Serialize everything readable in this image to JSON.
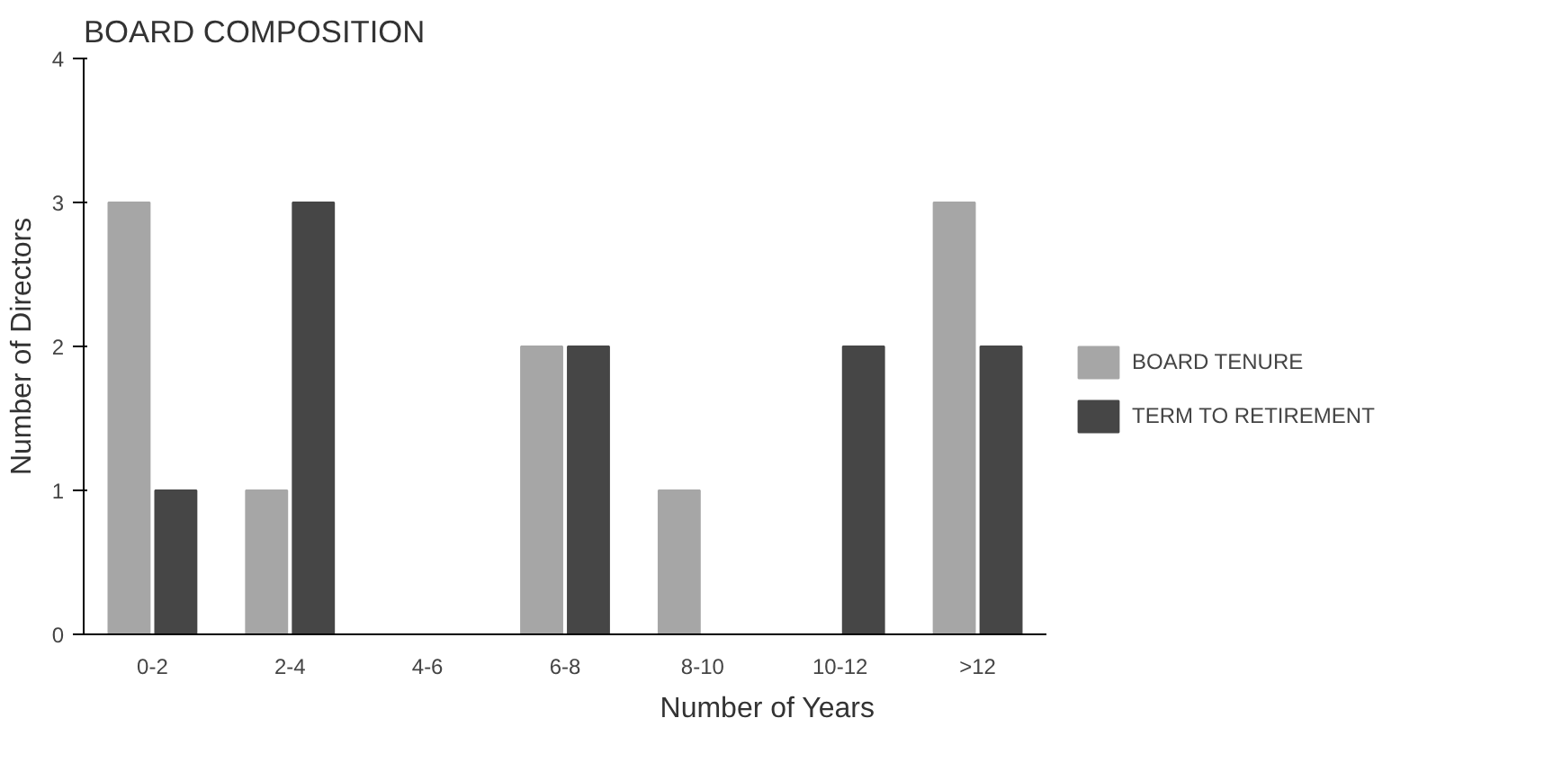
{
  "chart_data": {
    "type": "bar",
    "title": "BOARD COMPOSITION",
    "xlabel": "Number of Years",
    "ylabel": "Number of Directors",
    "categories": [
      "0-2",
      "2-4",
      "4-6",
      "6-8",
      "8-10",
      "10-12",
      ">12"
    ],
    "series": [
      {
        "name": "BOARD TENURE",
        "color": "#a6a6a6",
        "values": [
          3,
          1,
          0,
          2,
          1,
          0,
          3
        ]
      },
      {
        "name": "TERM TO RETIREMENT",
        "color": "#464646",
        "values": [
          1,
          3,
          0,
          2,
          0,
          2,
          2
        ]
      }
    ],
    "ylim": [
      0,
      4
    ],
    "yticks": [
      0,
      1,
      2,
      3,
      4
    ],
    "grid": false,
    "legend": "right"
  }
}
